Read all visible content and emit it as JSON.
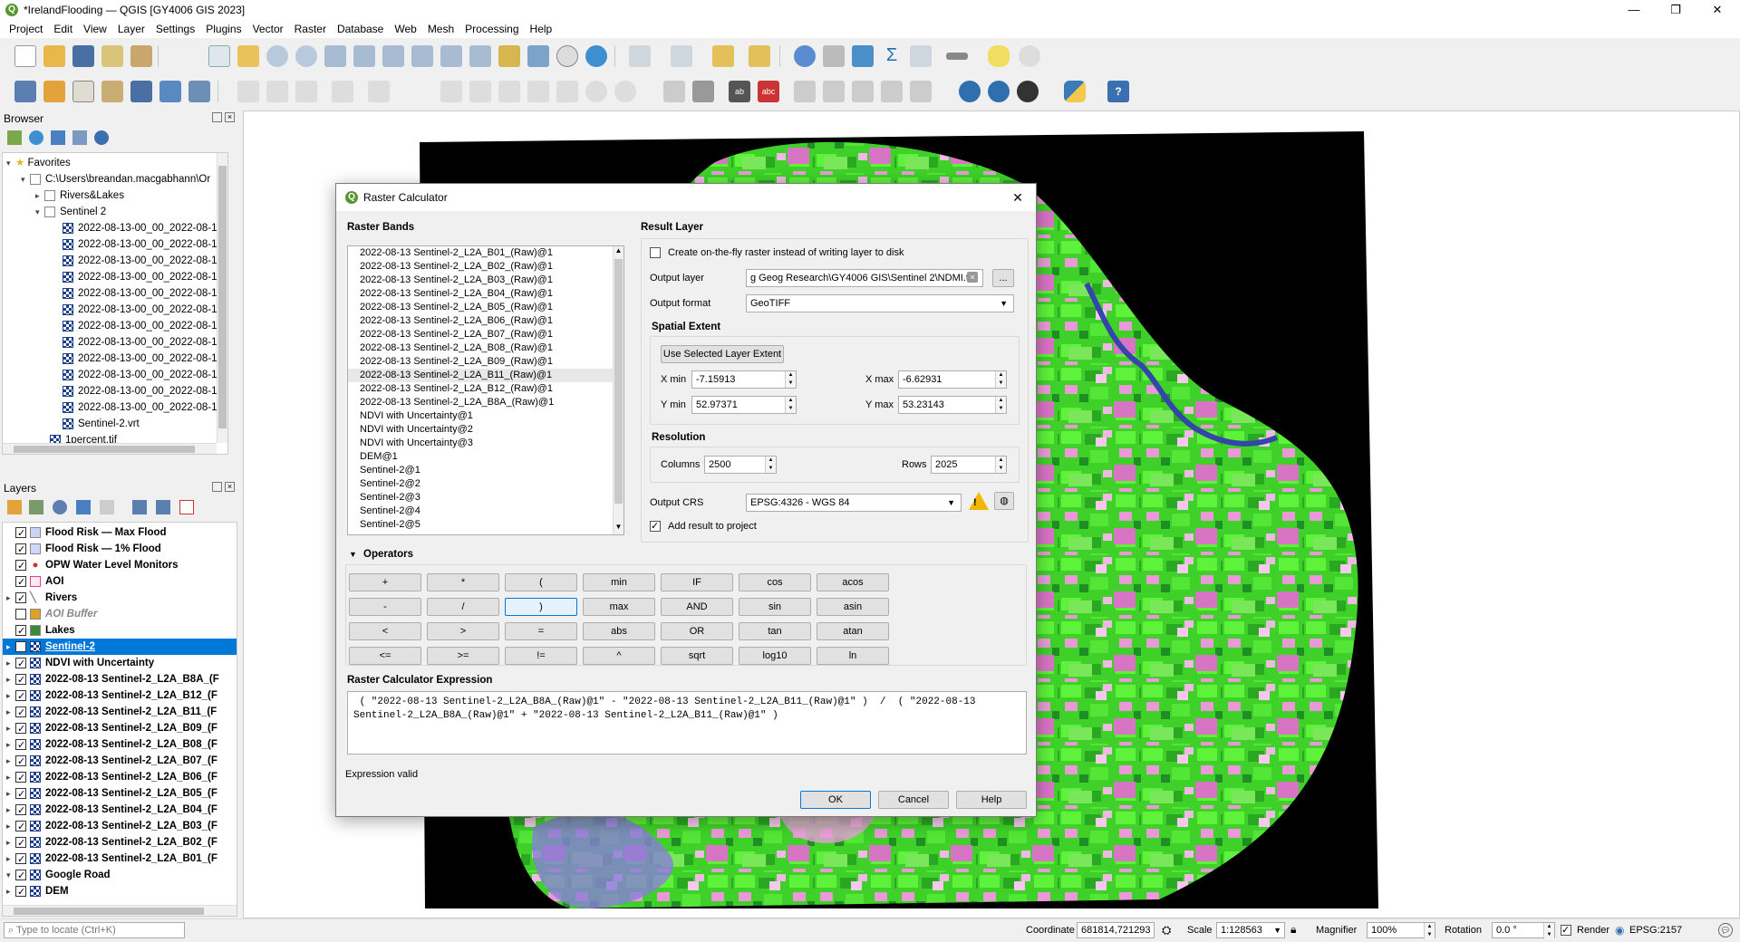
{
  "window": {
    "title": "*IrelandFlooding — QGIS [GY4006 GIS 2023]",
    "minimize": "—",
    "maximize": "❐",
    "close": "✕"
  },
  "menu": [
    "Project",
    "Edit",
    "View",
    "Layer",
    "Settings",
    "Plugins",
    "Vector",
    "Raster",
    "Database",
    "Web",
    "Mesh",
    "Processing",
    "Help"
  ],
  "browser": {
    "title": "Browser",
    "items": [
      {
        "label": "Favorites"
      },
      {
        "label": "C:\\Users\\breandan.macgabhann\\Or"
      },
      {
        "label": "Rivers&Lakes"
      },
      {
        "label": "Sentinel 2"
      },
      {
        "label": "2022-08-13-00_00_2022-08-13"
      },
      {
        "label": "2022-08-13-00_00_2022-08-13"
      },
      {
        "label": "2022-08-13-00_00_2022-08-13"
      },
      {
        "label": "2022-08-13-00_00_2022-08-13"
      },
      {
        "label": "2022-08-13-00_00_2022-08-13"
      },
      {
        "label": "2022-08-13-00_00_2022-08-13"
      },
      {
        "label": "2022-08-13-00_00_2022-08-13"
      },
      {
        "label": "2022-08-13-00_00_2022-08-13"
      },
      {
        "label": "2022-08-13-00_00_2022-08-13"
      },
      {
        "label": "2022-08-13-00_00_2022-08-13"
      },
      {
        "label": "2022-08-13-00_00_2022-08-13"
      },
      {
        "label": "2022-08-13-00_00_2022-08-13"
      },
      {
        "label": "Sentinel-2.vrt"
      },
      {
        "label": "1percent.tif"
      }
    ]
  },
  "layers": {
    "title": "Layers",
    "items": [
      {
        "label": "Flood Risk — Max Flood",
        "icon": "fill",
        "color": "#c9d3f5"
      },
      {
        "label": "Flood Risk — 1% Flood",
        "icon": "fill",
        "color": "#cfd8f8"
      },
      {
        "label": "OPW Water Level Monitors",
        "icon": "point",
        "color": "#c0392b"
      },
      {
        "label": "AOI",
        "icon": "fill",
        "color": "#ffe8f0"
      },
      {
        "label": "Rivers",
        "icon": "line",
        "color": "#555555"
      },
      {
        "label": "AOI Buffer",
        "icon": "fill",
        "color": "#e0a028"
      },
      {
        "label": "Lakes",
        "icon": "fill",
        "color": "#3a8a3a"
      },
      {
        "label": "Sentinel-2",
        "icon": "raster"
      },
      {
        "label": "NDVI with Uncertainty",
        "icon": "raster"
      },
      {
        "label": "2022-08-13 Sentinel-2_L2A_B8A_(F",
        "icon": "raster"
      },
      {
        "label": "2022-08-13 Sentinel-2_L2A_B12_(F",
        "icon": "raster"
      },
      {
        "label": "2022-08-13 Sentinel-2_L2A_B11_(F",
        "icon": "raster"
      },
      {
        "label": "2022-08-13 Sentinel-2_L2A_B09_(F",
        "icon": "raster"
      },
      {
        "label": "2022-08-13 Sentinel-2_L2A_B08_(F",
        "icon": "raster"
      },
      {
        "label": "2022-08-13 Sentinel-2_L2A_B07_(F",
        "icon": "raster"
      },
      {
        "label": "2022-08-13 Sentinel-2_L2A_B06_(F",
        "icon": "raster"
      },
      {
        "label": "2022-08-13 Sentinel-2_L2A_B05_(F",
        "icon": "raster"
      },
      {
        "label": "2022-08-13 Sentinel-2_L2A_B04_(F",
        "icon": "raster"
      },
      {
        "label": "2022-08-13 Sentinel-2_L2A_B03_(F",
        "icon": "raster"
      },
      {
        "label": "2022-08-13 Sentinel-2_L2A_B02_(F",
        "icon": "raster"
      },
      {
        "label": "2022-08-13 Sentinel-2_L2A_B01_(F",
        "icon": "raster"
      },
      {
        "label": "Google Road",
        "icon": "raster"
      },
      {
        "label": "DEM",
        "icon": "raster"
      }
    ]
  },
  "dialog": {
    "title": "Raster Calculator",
    "raster_bands_title": "Raster Bands",
    "bands": [
      "2022-08-13 Sentinel-2_L2A_B01_(Raw)@1",
      "2022-08-13 Sentinel-2_L2A_B02_(Raw)@1",
      "2022-08-13 Sentinel-2_L2A_B03_(Raw)@1",
      "2022-08-13 Sentinel-2_L2A_B04_(Raw)@1",
      "2022-08-13 Sentinel-2_L2A_B05_(Raw)@1",
      "2022-08-13 Sentinel-2_L2A_B06_(Raw)@1",
      "2022-08-13 Sentinel-2_L2A_B07_(Raw)@1",
      "2022-08-13 Sentinel-2_L2A_B08_(Raw)@1",
      "2022-08-13 Sentinel-2_L2A_B09_(Raw)@1",
      "2022-08-13 Sentinel-2_L2A_B11_(Raw)@1",
      "2022-08-13 Sentinel-2_L2A_B12_(Raw)@1",
      "2022-08-13 Sentinel-2_L2A_B8A_(Raw)@1",
      "NDVI with Uncertainty@1",
      "NDVI with Uncertainty@2",
      "NDVI with Uncertainty@3",
      "DEM@1",
      "Sentinel-2@1",
      "Sentinel-2@2",
      "Sentinel-2@3",
      "Sentinel-2@4",
      "Sentinel-2@5"
    ],
    "result_layer_title": "Result Layer",
    "on_the_fly_label": "Create on-the-fly raster instead of writing layer to disk",
    "output_layer_label": "Output layer",
    "output_layer_value": "g Geog Research\\GY4006 GIS\\Sentinel 2\\NDMI.tif",
    "browse_label": "...",
    "output_format_label": "Output format",
    "output_format_value": "GeoTIFF",
    "spatial_extent_title": "Spatial Extent",
    "use_extent_button": "Use Selected Layer Extent",
    "xmin_label": "X min",
    "xmin_value": "-7.15913",
    "xmax_label": "X max",
    "xmax_value": "-6.62931",
    "ymin_label": "Y min",
    "ymin_value": "52.97371",
    "ymax_label": "Y max",
    "ymax_value": "53.23143",
    "resolution_title": "Resolution",
    "columns_label": "Columns",
    "columns_value": "2500",
    "rows_label": "Rows",
    "rows_value": "2025",
    "crs_label": "Output CRS",
    "crs_value": "EPSG:4326 - WGS 84",
    "add_result_label": "Add result to project",
    "operators_title": "Operators",
    "operators": [
      [
        "+",
        "*",
        "(",
        "min",
        "IF",
        "cos",
        "acos"
      ],
      [
        "-",
        "/",
        ")",
        "max",
        "AND",
        "sin",
        "asin"
      ],
      [
        "<",
        ">",
        "=",
        "abs",
        "OR",
        "tan",
        "atan"
      ],
      [
        "<=",
        ">=",
        "!=",
        "^",
        "sqrt",
        "log10",
        "ln"
      ]
    ],
    "expression_title": "Raster Calculator Expression",
    "expression_line1": " ( \"2022-08-13 Sentinel-2_L2A_B8A_(Raw)@1\" - \"2022-08-13 Sentinel-2_L2A_B11_(Raw)@1\" )  /  ( \"2022-08-13",
    "expression_line2": "Sentinel-2_L2A_B8A_(Raw)@1\" + \"2022-08-13 Sentinel-2_L2A_B11_(Raw)@1\" )",
    "status": "Expression valid",
    "ok": "OK",
    "cancel": "Cancel",
    "help": "Help"
  },
  "status_bar": {
    "locate_placeholder": "Type to locate (Ctrl+K)",
    "coordinate_label": "Coordinate",
    "coordinate_value": "681814,721293",
    "scale_label": "Scale",
    "scale_value": "1:128563",
    "magnifier_label": "Magnifier",
    "magnifier_value": "100%",
    "rotation_label": "Rotation",
    "rotation_value": "0.0 °",
    "render_label": "Render",
    "crs": "EPSG:2157"
  },
  "colors": {
    "accent": "#0078d7",
    "selected_row": "#0078d7",
    "qgis_green": "#589632"
  }
}
